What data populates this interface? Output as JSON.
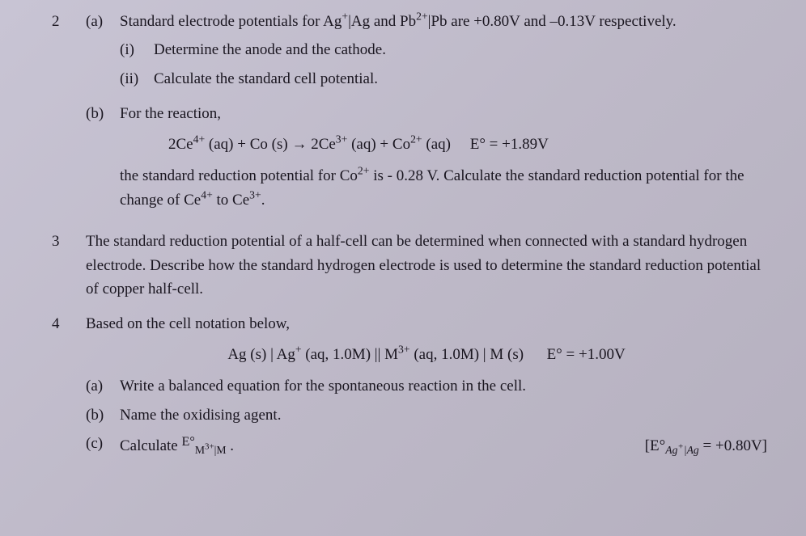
{
  "q2": {
    "num": "2",
    "a": {
      "label": "(a)",
      "intro_pre": "Standard electrode potentials for Ag",
      "intro_sup1": "+",
      "intro_mid1": "|Ag and Pb",
      "intro_sup2": "2+",
      "intro_mid2": "|Pb are +0.80V and –0.13V respectively.",
      "i": {
        "label": "(i)",
        "text": "Determine the anode and the cathode."
      },
      "ii": {
        "label": "(ii)",
        "text": "Calculate the standard cell potential."
      }
    },
    "b": {
      "label": "(b)",
      "intro": "For the reaction,",
      "eq": {
        "t1": "2Ce",
        "s1": "4+",
        "t2": " (aq)  +  Co (s)  ",
        "arrow": "→",
        "t3": "  2Ce",
        "s3": "3+",
        "t4": " (aq)  +  Co",
        "s4": "2+",
        "t5": " (aq)",
        "gap": "     ",
        "elabel": "E° = +1.89V"
      },
      "line2_pre": "the standard reduction potential for Co",
      "line2_sup": "2+",
      "line2_mid": " is - 0.28 V. Calculate the standard reduction potential for the change of Ce",
      "line2_sup2": "4+",
      "line2_mid2": " to Ce",
      "line2_sup3": "3+",
      "line2_end": "."
    }
  },
  "q3": {
    "num": "3",
    "text": "The standard reduction potential of a half-cell can be determined when connected with a standard hydrogen electrode. Describe how the standard hydrogen electrode is used to determine the standard reduction potential of copper half-cell."
  },
  "q4": {
    "num": "4",
    "intro": "Based on the cell notation below,",
    "eq": {
      "t1": "Ag (s) | Ag",
      "s1": "+",
      "t2": " (aq, 1.0M) || M",
      "s2": "3+",
      "t3": " (aq, 1.0M) | M (s)",
      "gap": "      ",
      "elabel": "E° = +1.00V"
    },
    "a": {
      "label": "(a)",
      "text": "Write a balanced equation for the spontaneous reaction in the cell."
    },
    "b": {
      "label": "(b)",
      "text": "Name the oxidising agent."
    },
    "c": {
      "label": "(c)",
      "pre": "Calculate ",
      "expr_e": "E°",
      "expr_sub1": "M",
      "expr_sup1": "3+",
      "expr_sub2": "|M",
      "post": " .",
      "note_pre": "[E°",
      "note_sub": "Ag",
      "note_sup": "+",
      "note_sub2": "|Ag",
      "note_post": " = +0.80V]"
    }
  }
}
